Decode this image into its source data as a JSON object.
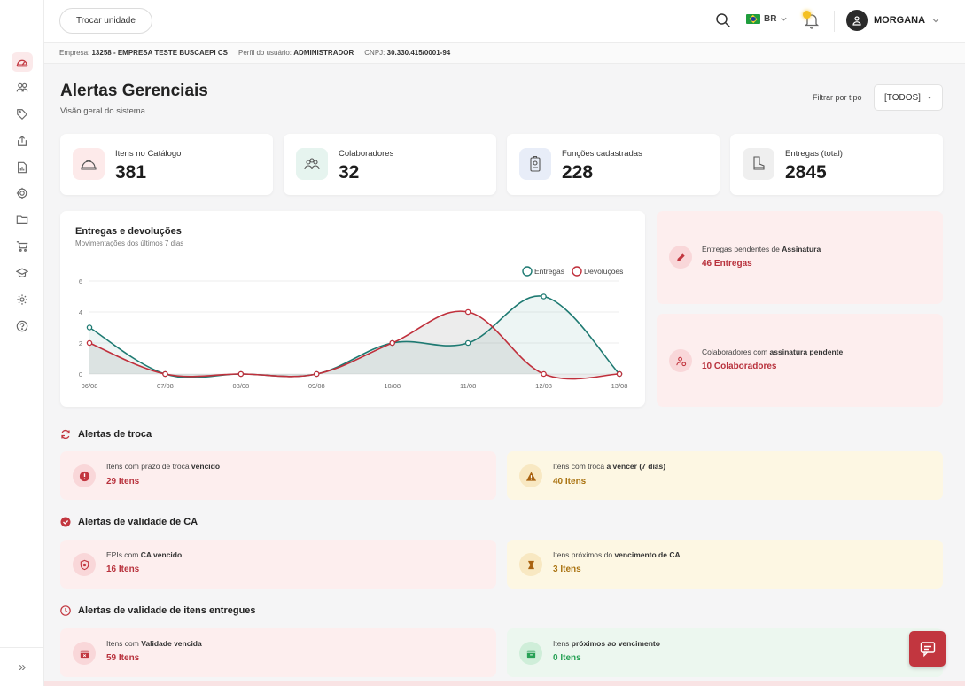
{
  "topbar": {
    "unit_button": "Trocar unidade",
    "lang": "BR",
    "user": "MORGANA"
  },
  "infobar": {
    "empresa_label": "Empresa:",
    "empresa_value": "13258 - EMPRESA TESTE BUSCAEPI CS",
    "perfil_label": "Perfil do usuário:",
    "perfil_value": "ADMINISTRADOR",
    "cnpj_label": "CNPJ:",
    "cnpj_value": "30.330.415/0001-94"
  },
  "header": {
    "title": "Alertas Gerenciais",
    "subtitle": "Visão geral do sistema",
    "filter_label": "Filtrar por tipo",
    "filter_value": "[TODOS]"
  },
  "sidebar": {
    "items": [
      "dashboard-icon",
      "users-icon",
      "tag-icon",
      "upload-icon",
      "report-icon",
      "chip-icon",
      "folder-icon",
      "cart-icon",
      "graduation-icon",
      "settings-icon",
      "help-icon"
    ],
    "expand": "»"
  },
  "stats": [
    {
      "label": "Itens no Catálogo",
      "value": "381",
      "icon": "helmet-icon",
      "bg": "#fdeaea"
    },
    {
      "label": "Colaboradores",
      "value": "32",
      "icon": "team-icon",
      "bg": "#e6f4ef"
    },
    {
      "label": "Funções cadastradas",
      "value": "228",
      "icon": "badge-icon",
      "bg": "#e8edf8"
    },
    {
      "label": "Entregas (total)",
      "value": "2845",
      "icon": "boot-icon",
      "bg": "#efefef"
    }
  ],
  "chart": {
    "title": "Entregas e devoluções",
    "subtitle": "Movimentações dos últimos 7 dias"
  },
  "chart_data": {
    "type": "line",
    "x": [
      "06/08",
      "07/08",
      "08/08",
      "09/08",
      "10/08",
      "11/08",
      "12/08",
      "13/08"
    ],
    "series": [
      {
        "name": "Entregas",
        "values": [
          3,
          0,
          0,
          0,
          2,
          2,
          5,
          0
        ],
        "color": "#1e7a72"
      },
      {
        "name": "Devoluções",
        "values": [
          2,
          0,
          0,
          0,
          2,
          4,
          0,
          0
        ],
        "color": "#c0303c"
      }
    ],
    "yticks": [
      0,
      2,
      4,
      6
    ],
    "ylim": [
      0,
      6
    ],
    "legend": "top-right",
    "grid": true
  },
  "side_alerts": [
    {
      "text": "Entregas pendentes de ",
      "bold": "Assinatura",
      "value": "46 Entregas",
      "icon": "pen-icon"
    },
    {
      "text": "Colaboradores com ",
      "bold": "assinatura pendente",
      "value": "10 Colaboradores",
      "icon": "user-alert-icon"
    }
  ],
  "sections": [
    {
      "title": "Alertas de troca",
      "icon": "refresh-icon",
      "items": [
        {
          "text": "Itens com prazo de troca ",
          "bold": "vencido",
          "value": "29 Itens",
          "tone": "red",
          "icon": "error-icon"
        },
        {
          "text": "Itens com troca ",
          "bold": "a vencer (7 dias)",
          "value": "40 Itens",
          "tone": "yellow",
          "icon": "warning-icon"
        }
      ]
    },
    {
      "title": "Alertas de validade de CA",
      "icon": "verified-icon",
      "items": [
        {
          "text": "EPIs com ",
          "bold": "CA vencido",
          "value": "16 Itens",
          "tone": "red",
          "icon": "shield-icon"
        },
        {
          "text": "Itens próximos do ",
          "bold": "vencimento de CA",
          "value": "3 Itens",
          "tone": "yellow",
          "icon": "hourglass-icon"
        }
      ]
    },
    {
      "title": "Alertas de validade de itens entregues",
      "icon": "clock-icon",
      "items": [
        {
          "text": "Itens com ",
          "bold": "Validade vencida",
          "value": "59 Itens",
          "tone": "red",
          "icon": "box-x-icon"
        },
        {
          "text": "Itens ",
          "bold": "próximos ao vencimento",
          "value": "0 Itens",
          "tone": "green",
          "icon": "box-icon"
        }
      ]
    }
  ],
  "colors": {
    "accent": "#c2363f",
    "entregas": "#1e7a72",
    "devolucoes": "#c0303c"
  }
}
